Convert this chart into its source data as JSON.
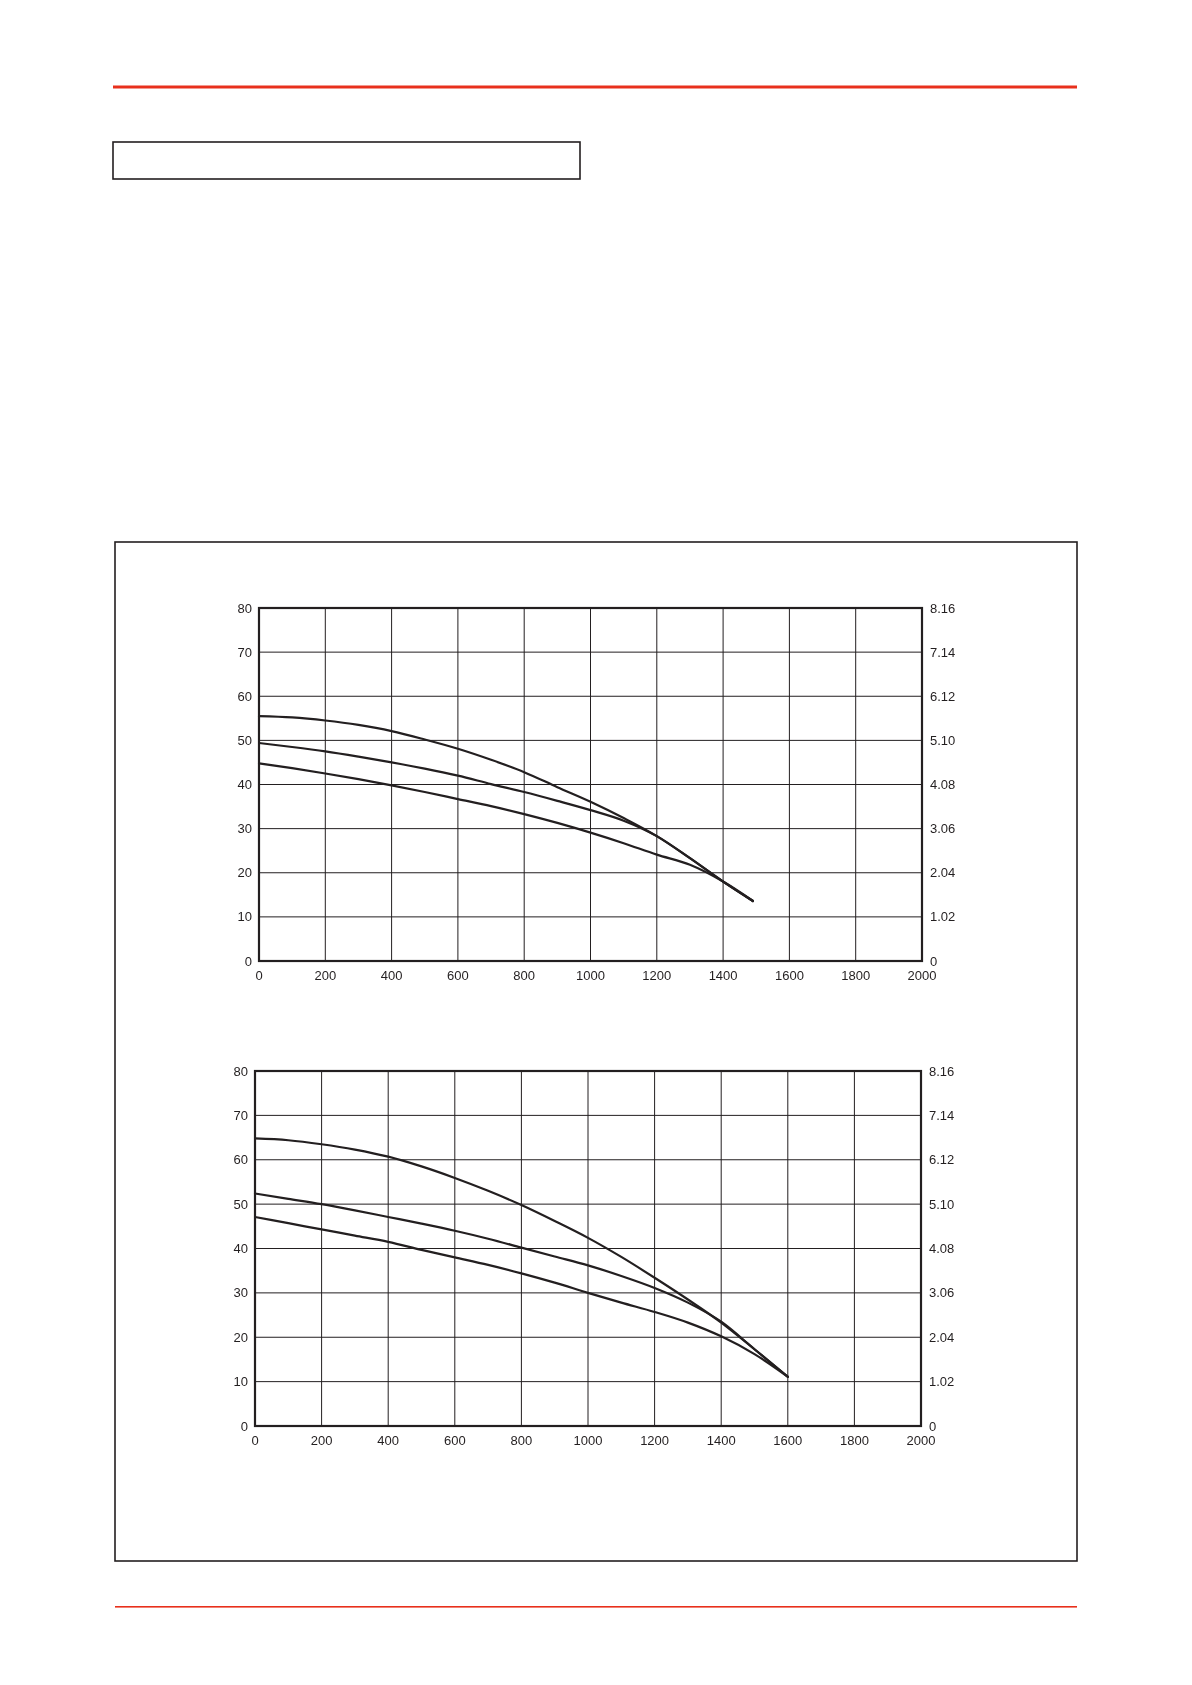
{
  "chart_data": [
    {
      "type": "line",
      "x": [
        0,
        100,
        200,
        300,
        400,
        500,
        600,
        700,
        800,
        900,
        1000,
        1100,
        1200,
        1300,
        1400,
        1490
      ],
      "series": [
        {
          "color": "#231f20",
          "values": [
            55.5,
            55.2,
            54.5,
            53.5,
            52.1,
            50.2,
            48.1,
            45.6,
            42.8,
            39.4,
            36.1,
            32.4,
            28.3,
            23.3,
            18,
            13.6
          ]
        },
        {
          "color": "#231f20",
          "values": [
            49.4,
            48.5,
            47.5,
            46.3,
            45,
            43.6,
            42,
            40.1,
            38.3,
            36.3,
            34.2,
            31.8,
            28.3,
            23.3,
            18,
            13.6
          ]
        },
        {
          "color": "#231f20",
          "values": [
            44.8,
            43.7,
            42.5,
            41.2,
            39.8,
            38.3,
            36.7,
            35.1,
            33.3,
            31.3,
            29.1,
            26.7,
            24.1,
            21.8,
            18,
            13.6
          ]
        }
      ],
      "xlim": [
        0,
        2000
      ],
      "xticks": [
        0,
        200,
        400,
        600,
        800,
        1000,
        1200,
        1400,
        1600,
        1800,
        2000
      ],
      "ylim": [
        0,
        80
      ],
      "yticks": [
        0,
        10,
        20,
        30,
        40,
        50,
        60,
        70,
        80
      ],
      "y2lim": [
        0,
        8.16
      ],
      "y2ticks": [
        0,
        1.02,
        2.04,
        3.06,
        4.08,
        {
          "value": 5.1,
          "label": "5.10"
        },
        6.12,
        7.14,
        8.16
      ],
      "grid": true
    },
    {
      "type": "line",
      "x": [
        0,
        100,
        200,
        300,
        400,
        500,
        600,
        700,
        800,
        900,
        1000,
        1100,
        1200,
        1300,
        1400,
        1500,
        1600
      ],
      "series": [
        {
          "color": "#231f20",
          "values": [
            64.8,
            64.4,
            63.5,
            62.3,
            60.7,
            58.5,
            55.9,
            53,
            49.8,
            46.2,
            42.4,
            38.1,
            33.4,
            28.5,
            23.3,
            17.3,
            11.1
          ]
        },
        {
          "color": "#231f20",
          "values": [
            52.4,
            51.2,
            50,
            48.6,
            47.1,
            45.6,
            44,
            42.2,
            40.2,
            38.2,
            36.2,
            33.8,
            31.1,
            27.8,
            23.5,
            17.3,
            11.1
          ]
        },
        {
          "color": "#231f20",
          "values": [
            47.1,
            45.7,
            44.3,
            42.9,
            41.5,
            39.7,
            38,
            36.3,
            34.4,
            32.3,
            30,
            27.8,
            25.7,
            23.3,
            20.2,
            16.2,
            11.1
          ]
        }
      ],
      "xlim": [
        0,
        2000
      ],
      "xticks": [
        0,
        200,
        400,
        600,
        800,
        1000,
        1200,
        1400,
        1600,
        1800,
        2000
      ],
      "ylim": [
        0,
        80
      ],
      "yticks": [
        0,
        10,
        20,
        30,
        40,
        50,
        60,
        70,
        80
      ],
      "y2lim": [
        0,
        8.16
      ],
      "y2ticks": [
        0,
        1.02,
        2.04,
        3.06,
        4.08,
        {
          "value": 5.1,
          "label": "5.10"
        },
        6.12,
        7.14,
        8.16
      ],
      "grid": true
    }
  ]
}
